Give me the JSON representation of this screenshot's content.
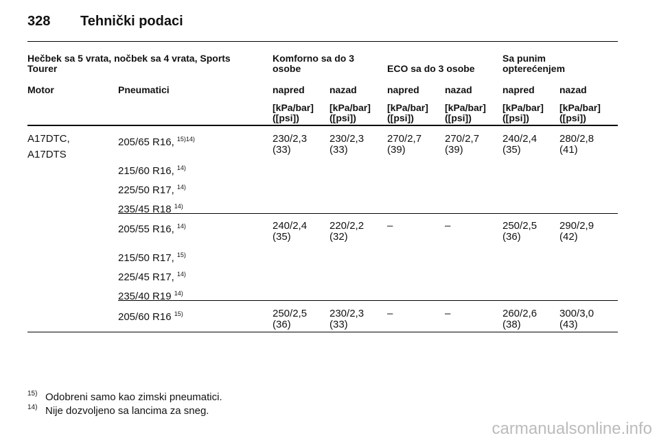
{
  "header": {
    "page": "328",
    "title": "Tehnički podaci"
  },
  "table": {
    "group_headers": [
      "Hečbek sa 5 vrata, nočbek sa 4 vrata, Sports Tourer",
      "Komforno sa do 3 osobe",
      "ECO sa do 3 osobe",
      "Sa punim opterećenjem"
    ],
    "columns": [
      "Motor",
      "Pneumatici",
      "napred",
      "nazad",
      "napred",
      "nazad",
      "napred",
      "nazad"
    ],
    "units": [
      "[kPa/bar] ([psi])",
      "[kPa/bar] ([psi])",
      "[kPa/bar] ([psi])",
      "[kPa/bar] ([psi])",
      "[kPa/bar] ([psi])",
      "[kPa/bar] ([psi])"
    ],
    "motor": [
      "A17DTC,",
      "A17DTS"
    ],
    "groups": [
      {
        "tyres": [
          {
            "size": "205/65 R16,",
            "note": "15)14)"
          },
          {
            "size": "215/60 R16,",
            "note": "14)"
          },
          {
            "size": "225/50 R17,",
            "note": "14)"
          },
          {
            "size": "235/45 R18",
            "note": "14)"
          }
        ],
        "pressures": [
          {
            "kpa_bar": "230/2,3",
            "psi": "(33)"
          },
          {
            "kpa_bar": "230/2,3",
            "psi": "(33)"
          },
          {
            "kpa_bar": "270/2,7",
            "psi": "(39)"
          },
          {
            "kpa_bar": "270/2,7",
            "psi": "(39)"
          },
          {
            "kpa_bar": "240/2,4",
            "psi": "(35)"
          },
          {
            "kpa_bar": "280/2,8",
            "psi": "(41)"
          }
        ]
      },
      {
        "tyres": [
          {
            "size": "205/55 R16,",
            "note": "14)"
          },
          {
            "size": "215/50 R17,",
            "note": "15)"
          },
          {
            "size": "225/45 R17,",
            "note": "14)"
          },
          {
            "size": "235/40 R19",
            "note": "14)"
          }
        ],
        "pressures": [
          {
            "kpa_bar": "240/2,4",
            "psi": "(35)"
          },
          {
            "kpa_bar": "220/2,2",
            "psi": "(32)"
          },
          {
            "kpa_bar": "–"
          },
          {
            "kpa_bar": "–"
          },
          {
            "kpa_bar": "250/2,5",
            "psi": "(36)"
          },
          {
            "kpa_bar": "290/2,9",
            "psi": "(42)"
          }
        ]
      },
      {
        "tyres": [
          {
            "size": "205/60 R16",
            "note": "15)"
          }
        ],
        "pressures": [
          {
            "kpa_bar": "250/2,5",
            "psi": "(36)"
          },
          {
            "kpa_bar": "230/2,3",
            "psi": "(33)"
          },
          {
            "kpa_bar": "–"
          },
          {
            "kpa_bar": "–"
          },
          {
            "kpa_bar": "260/2,6",
            "psi": "(38)"
          },
          {
            "kpa_bar": "300/3,0",
            "psi": "(43)"
          }
        ]
      }
    ]
  },
  "footnotes": [
    {
      "mark": "15)",
      "text": "Odobreni samo kao zimski pneumatici."
    },
    {
      "mark": "14)",
      "text": "Nije dozvoljeno sa lancima za sneg."
    }
  ],
  "watermark": "carmanualsonline.info"
}
